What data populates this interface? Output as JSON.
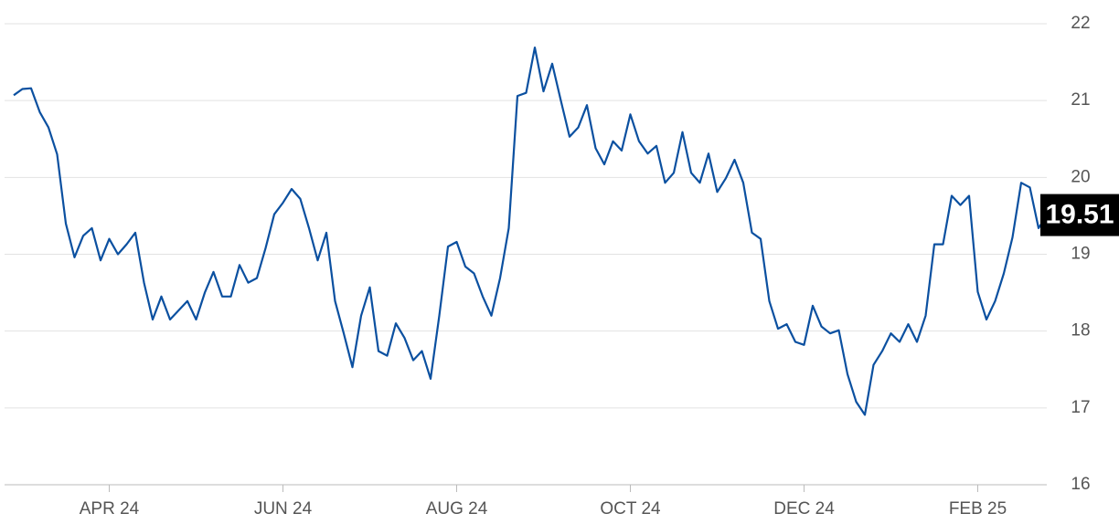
{
  "chart_data": {
    "type": "line",
    "categories": [
      null,
      null,
      null,
      null,
      null,
      null,
      null,
      null,
      null,
      null,
      null,
      "APR 24",
      null,
      null,
      null,
      null,
      null,
      null,
      null,
      null,
      null,
      null,
      null,
      null,
      null,
      null,
      null,
      null,
      null,
      null,
      null,
      "JUN 24",
      null,
      null,
      null,
      null,
      null,
      null,
      null,
      null,
      null,
      null,
      null,
      null,
      null,
      null,
      null,
      null,
      null,
      null,
      null,
      "AUG 24",
      null,
      null,
      null,
      null,
      null,
      null,
      null,
      null,
      null,
      null,
      null,
      null,
      null,
      null,
      null,
      null,
      null,
      null,
      null,
      "OCT 24",
      null,
      null,
      null,
      null,
      null,
      null,
      null,
      null,
      null,
      null,
      null,
      null,
      null,
      null,
      null,
      null,
      null,
      null,
      null,
      "DEC 24",
      null,
      null,
      null,
      null,
      null,
      null,
      null,
      null,
      null,
      null,
      null,
      null,
      null,
      null,
      null,
      null,
      null,
      null,
      null,
      "FEB 25",
      null,
      null,
      null,
      null,
      null,
      null,
      null,
      null
    ],
    "values": [
      21.07,
      21.15,
      21.16,
      20.85,
      20.65,
      20.3,
      19.4,
      18.96,
      19.24,
      19.34,
      18.92,
      19.2,
      19.0,
      19.13,
      19.28,
      18.63,
      18.15,
      18.45,
      18.15,
      18.27,
      18.39,
      18.15,
      18.5,
      18.77,
      18.45,
      18.45,
      18.86,
      18.63,
      18.69,
      19.08,
      19.52,
      19.67,
      19.85,
      19.72,
      19.34,
      18.92,
      19.28,
      18.39,
      17.97,
      17.53,
      18.2,
      18.57,
      17.74,
      17.68,
      18.1,
      17.91,
      17.62,
      17.74,
      17.38,
      18.2,
      19.1,
      19.16,
      18.84,
      18.75,
      18.45,
      18.2,
      18.69,
      19.34,
      21.06,
      21.1,
      21.69,
      21.12,
      21.48,
      21.0,
      20.53,
      20.65,
      20.94,
      20.38,
      20.17,
      20.47,
      20.35,
      20.82,
      20.47,
      20.31,
      20.41,
      19.93,
      20.06,
      20.59,
      20.06,
      19.93,
      20.31,
      19.81,
      19.99,
      20.23,
      19.93,
      19.28,
      19.2,
      18.39,
      18.03,
      18.09,
      17.86,
      17.82,
      18.33,
      18.06,
      17.97,
      18.01,
      17.44,
      17.08,
      16.91,
      17.56,
      17.74,
      17.97,
      17.86,
      18.09,
      17.86,
      18.2,
      19.13,
      19.13,
      19.76,
      19.64,
      19.76,
      18.51,
      18.15,
      18.39,
      18.75,
      19.22,
      19.93,
      19.87,
      19.34,
      19.51
    ],
    "color": "#0b50a0",
    "ylim": [
      16,
      22
    ],
    "yticks": [
      16,
      17,
      18,
      19,
      20,
      21,
      22
    ],
    "grid": true
  }
}
